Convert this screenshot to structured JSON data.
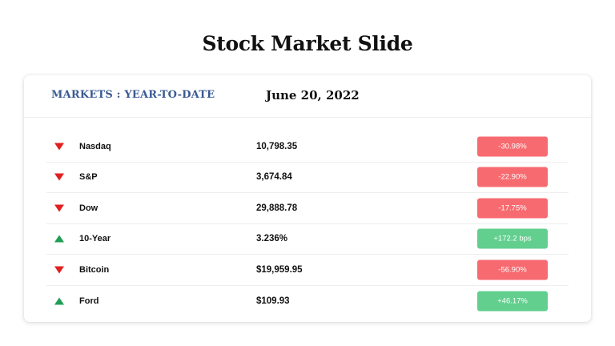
{
  "slide": {
    "title": "Stock Market Slide"
  },
  "card": {
    "header_label": "MARKETS : YEAR-TO-DATE",
    "date": "June 20, 2022"
  },
  "colors": {
    "header_label": "#3a5a93",
    "down_arrow": "#e02020",
    "up_arrow": "#1f9e55",
    "down_badge": "#f76a6f",
    "up_badge": "#62cf8f"
  },
  "markets": [
    {
      "direction": "down",
      "icon": "triangle-down-icon",
      "name": "Nasdaq",
      "value": "10,798.35",
      "change": "-30.98%"
    },
    {
      "direction": "down",
      "icon": "triangle-down-icon",
      "name": "S&P",
      "value": "3,674.84",
      "change": "-22.90%"
    },
    {
      "direction": "down",
      "icon": "triangle-down-icon",
      "name": "Dow",
      "value": "29,888.78",
      "change": "-17.75%"
    },
    {
      "direction": "up",
      "icon": "triangle-up-icon",
      "name": "10-Year",
      "value": "3.236%",
      "change": "+172.2 bps"
    },
    {
      "direction": "down",
      "icon": "triangle-down-icon",
      "name": "Bitcoin",
      "value": "$19,959.95",
      "change": "-56.90%"
    },
    {
      "direction": "up",
      "icon": "triangle-up-icon",
      "name": "Ford",
      "value": "$109.93",
      "change": "+46.17%"
    }
  ]
}
